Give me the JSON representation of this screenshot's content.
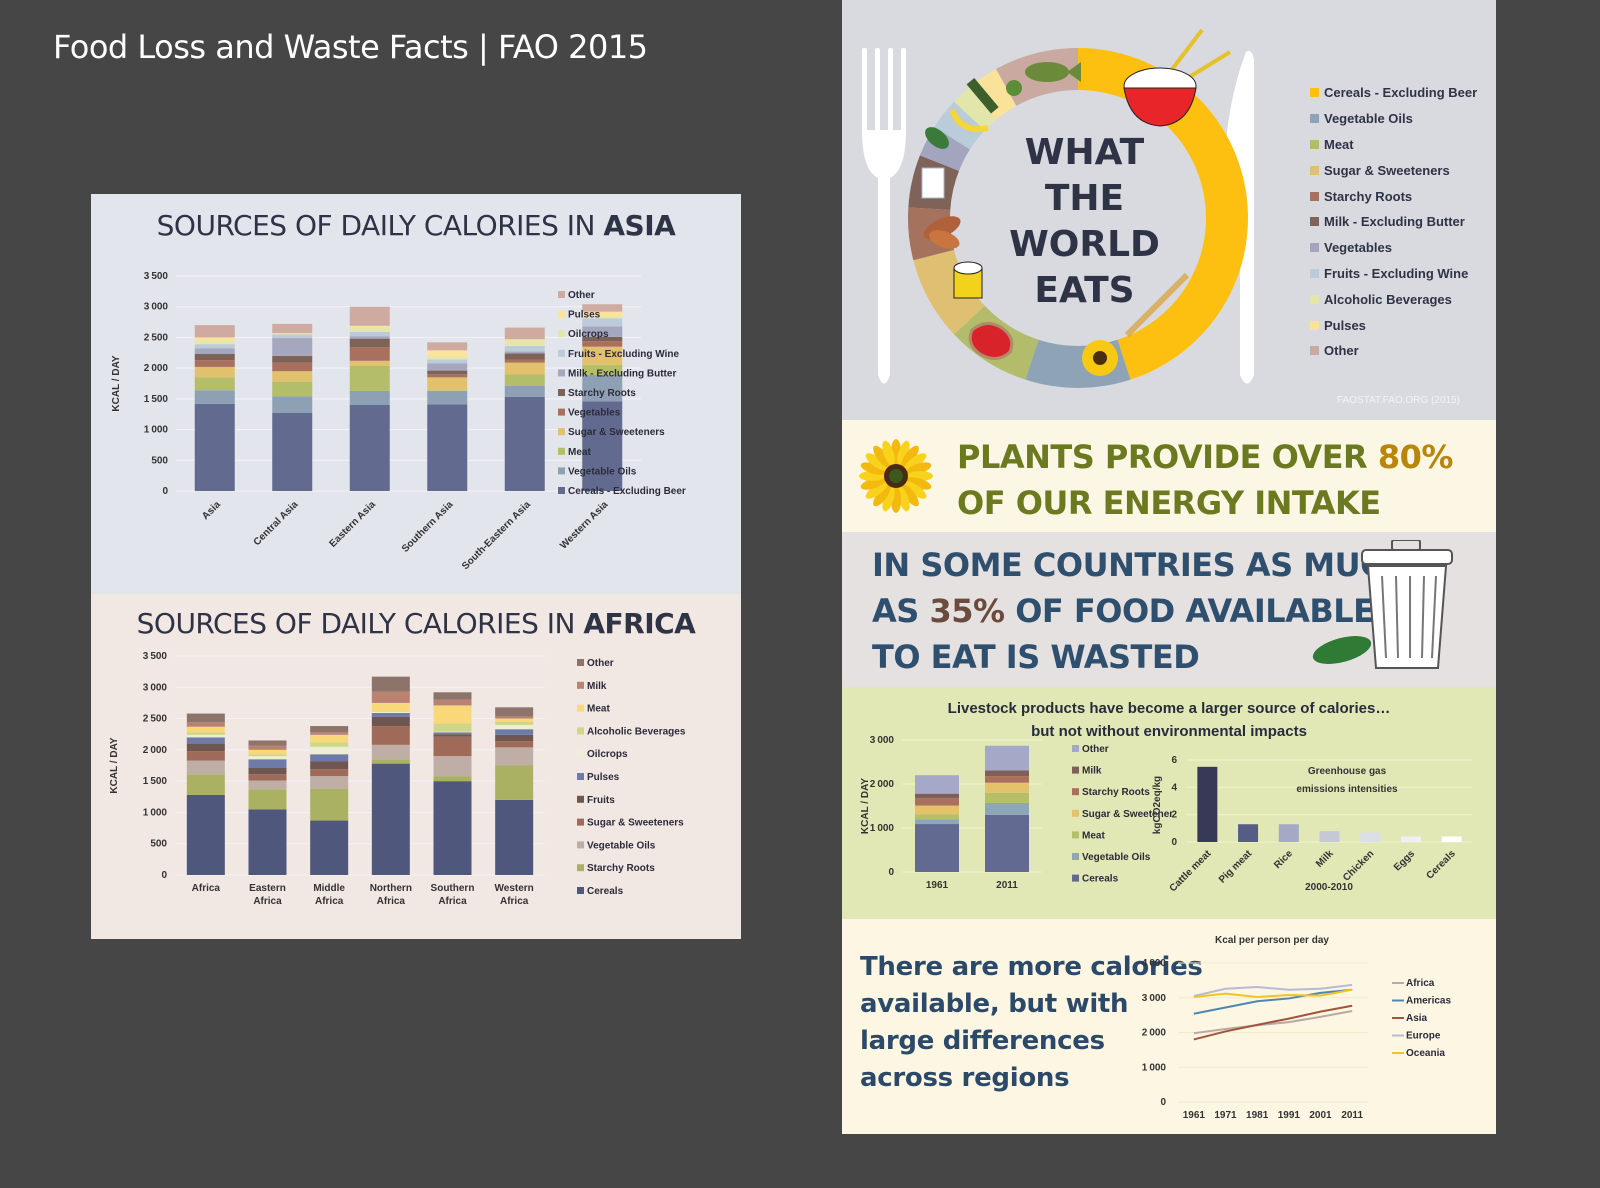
{
  "page": {
    "title": "Food Loss and Waste Facts | FAO 2015"
  },
  "asia": {
    "title_prefix": "SOURCES OF DAILY CALORIES IN ",
    "title_bold": "ASIA"
  },
  "africa": {
    "title_prefix": "SOURCES OF DAILY CALORIES IN ",
    "title_bold": "AFRICA"
  },
  "what_world_eats": {
    "title_lines": [
      "WHAT",
      "THE",
      "WORLD",
      "EATS"
    ],
    "source": "FAOSTAT.FAO.ORG (2015)",
    "legend": [
      {
        "label": "Cereals - Excluding Beer",
        "color": "#fdc010"
      },
      {
        "label": "Vegetable Oils",
        "color": "#8fa3b6"
      },
      {
        "label": "Meat",
        "color": "#b2bc6a"
      },
      {
        "label": "Sugar & Sweeteners",
        "color": "#dfc072"
      },
      {
        "label": "Starchy Roots",
        "color": "#a5725e"
      },
      {
        "label": "Milk - Excluding Butter",
        "color": "#806358"
      },
      {
        "label": "Vegetables",
        "color": "#a2a5bd"
      },
      {
        "label": "Fruits - Excluding Wine",
        "color": "#bacbd9"
      },
      {
        "label": "Alcoholic Beverages",
        "color": "#e2e6aa"
      },
      {
        "label": "Pulses",
        "color": "#fbe29a"
      },
      {
        "label": "Other",
        "color": "#c9a9a0"
      }
    ]
  },
  "plants": {
    "line1_prefix": "PLANTS PROVIDE OVER ",
    "line1_pct": "80%",
    "line2": "OF OUR ENERGY INTAKE"
  },
  "waste": {
    "line1": "IN SOME COUNTRIES AS MUCH",
    "line2_prefix": "AS ",
    "line2_pct": "35%",
    "line2_suffix": " OF FOOD AVAILABLE",
    "line3": "TO EAT IS WASTED"
  },
  "livestock": {
    "title_line1": "Livestock products have become a larger source of calories…",
    "title_line2": "but not without environmental impacts"
  },
  "calories_text": {
    "lines": [
      "There are more calories",
      "available, but with",
      "large differences",
      "across regions"
    ]
  },
  "chart_data": [
    {
      "id": "asia",
      "type": "bar",
      "stacked": true,
      "title": "SOURCES OF DAILY CALORIES IN ASIA",
      "xlabel": "",
      "ylabel": "KCAL / DAY",
      "ylim": [
        0,
        3500
      ],
      "yticks": [
        0,
        500,
        1000,
        1500,
        2000,
        2500,
        3000,
        3500
      ],
      "categories": [
        "Asia",
        "Central Asia",
        "Eastern Asia",
        "Southern Asia",
        "South-Eastern Asia",
        "Western Asia"
      ],
      "legend_position": "right",
      "series": [
        {
          "name": "Cereals - Excluding Beer",
          "color": "#636a8f",
          "values": [
            1420,
            1270,
            1400,
            1410,
            1530,
            1460
          ]
        },
        {
          "name": "Vegetable Oils",
          "color": "#8ea1b4",
          "values": [
            220,
            270,
            230,
            220,
            180,
            430
          ]
        },
        {
          "name": "Meat",
          "color": "#b4bd69",
          "values": [
            210,
            240,
            410,
            10,
            190,
            160
          ]
        },
        {
          "name": "Sugar & Sweeteners",
          "color": "#e1c16b",
          "values": [
            170,
            170,
            80,
            210,
            190,
            300
          ]
        },
        {
          "name": "Vegetables",
          "color": "#a8705d",
          "values": [
            110,
            140,
            220,
            50,
            50,
            90
          ]
        },
        {
          "name": "Starchy Roots",
          "color": "#7d6258",
          "values": [
            100,
            110,
            140,
            60,
            100,
            70
          ]
        },
        {
          "name": "Milk - Excluding Butter",
          "color": "#a5a7be",
          "values": [
            90,
            290,
            40,
            120,
            30,
            170
          ]
        },
        {
          "name": "Fruits - Excluding Wine",
          "color": "#bccbd9",
          "values": [
            70,
            60,
            70,
            60,
            90,
            130
          ]
        },
        {
          "name": "Oilcrops",
          "color": "#e3e7ab",
          "values": [
            60,
            10,
            80,
            40,
            90,
            30
          ]
        },
        {
          "name": "Pulses",
          "color": "#fbe39b",
          "values": [
            50,
            10,
            20,
            110,
            20,
            80
          ]
        },
        {
          "name": "Other",
          "color": "#cfaaa0",
          "values": [
            200,
            150,
            310,
            130,
            190,
            120
          ]
        }
      ]
    },
    {
      "id": "africa",
      "type": "bar",
      "stacked": true,
      "title": "SOURCES OF DAILY CALORIES IN AFRICA",
      "xlabel": "",
      "ylabel": "KCAL / DAY",
      "ylim": [
        0,
        3500
      ],
      "yticks": [
        0,
        500,
        1000,
        1500,
        2000,
        2500,
        3000,
        3500
      ],
      "categories": [
        "Africa",
        "Eastern Africa",
        "Middle Africa",
        "Northern Africa",
        "Southern Africa",
        "Western Africa"
      ],
      "legend_position": "right",
      "series": [
        {
          "name": "Cereals",
          "color": "#4f587c",
          "values": [
            1280,
            1050,
            870,
            1780,
            1500,
            1200
          ]
        },
        {
          "name": "Starchy Roots",
          "color": "#aab163",
          "values": [
            330,
            320,
            510,
            70,
            80,
            550
          ]
        },
        {
          "name": "Vegetable Oils",
          "color": "#bfaea6",
          "values": [
            220,
            140,
            200,
            230,
            320,
            290
          ]
        },
        {
          "name": "Sugar & Sweeteners",
          "color": "#a06a58",
          "values": [
            150,
            100,
            110,
            300,
            310,
            100
          ]
        },
        {
          "name": "Fruits",
          "color": "#6e5751",
          "values": [
            120,
            100,
            130,
            150,
            40,
            100
          ]
        },
        {
          "name": "Pulses",
          "color": "#6e7aa8",
          "values": [
            100,
            140,
            110,
            60,
            30,
            90
          ]
        },
        {
          "name": "Oilcrops",
          "color": "#eeefd2",
          "values": [
            40,
            50,
            120,
            20,
            10,
            70
          ]
        },
        {
          "name": "Alcoholic Beverages",
          "color": "#cfd787",
          "values": [
            40,
            30,
            70,
            10,
            130,
            50
          ]
        },
        {
          "name": "Meat",
          "color": "#f8d878",
          "values": [
            90,
            70,
            120,
            130,
            290,
            50
          ]
        },
        {
          "name": "Milk",
          "color": "#b98273",
          "values": [
            70,
            70,
            40,
            180,
            90,
            30
          ]
        },
        {
          "name": "Other",
          "color": "#8d746b",
          "values": [
            140,
            80,
            100,
            240,
            120,
            150
          ]
        }
      ]
    },
    {
      "id": "what_world_eats",
      "type": "pie",
      "donut": true,
      "title": "WHAT THE WORLD EATS",
      "categories": [
        "Cereals - Excluding Beer",
        "Vegetable Oils",
        "Meat",
        "Sugar & Sweeteners",
        "Starchy Roots",
        "Milk - Excluding Butter",
        "Vegetables",
        "Fruits - Excluding Wine",
        "Alcoholic Beverages",
        "Pulses",
        "Other"
      ],
      "values": [
        45,
        10,
        8,
        8,
        5,
        5,
        3,
        3,
        2,
        3,
        8
      ],
      "legend_position": "right"
    },
    {
      "id": "livestock",
      "type": "bar",
      "stacked": true,
      "title": "Livestock products have become a larger source of calories… but not without environmental impacts",
      "ylabel": "KCAL / DAY",
      "ylim": [
        0,
        3000
      ],
      "yticks": [
        0,
        1000,
        2000,
        3000
      ],
      "categories": [
        "1961",
        "2011"
      ],
      "legend_position": "right",
      "series": [
        {
          "name": "Cereals",
          "color": "#626a92",
          "values": [
            1090,
            1300
          ]
        },
        {
          "name": "Vegetable Oils",
          "color": "#8ea7b8",
          "values": [
            110,
            270
          ]
        },
        {
          "name": "Meat",
          "color": "#b4bf68",
          "values": [
            110,
            230
          ]
        },
        {
          "name": "Sugar & Sweeteners",
          "color": "#e3c26a",
          "values": [
            200,
            230
          ]
        },
        {
          "name": "Starchy Roots",
          "color": "#ab6f5d",
          "values": [
            170,
            150
          ]
        },
        {
          "name": "Milk",
          "color": "#7e5f5a",
          "values": [
            100,
            130
          ]
        },
        {
          "name": "Other",
          "color": "#a5a8c6",
          "values": [
            420,
            560
          ]
        }
      ]
    },
    {
      "id": "ghg",
      "type": "bar",
      "title": "Greenhouse gas emissions intensities",
      "xlabel": "2000-2010",
      "ylabel": "kgCO2eq/kg",
      "ylim": [
        0,
        6
      ],
      "yticks": [
        0,
        2,
        4,
        6
      ],
      "categories": [
        "Cattle meat",
        "Pig meat",
        "Rice",
        "Milk",
        "Chicken",
        "Eggs",
        "Cereals"
      ],
      "values": [
        5.5,
        1.3,
        1.3,
        0.8,
        0.7,
        0.4,
        0.4
      ],
      "colors": [
        "#363a57",
        "#555d86",
        "#a5a8c6",
        "#c6c8d7",
        "#dcdee6",
        "#eef0f6",
        "#ffffff"
      ]
    },
    {
      "id": "kcal_regions",
      "type": "line",
      "title": "Kcal per person per day",
      "ylim": [
        0,
        4000
      ],
      "yticks": [
        0,
        1000,
        2000,
        3000,
        4000
      ],
      "x": [
        "1961",
        "1971",
        "1981",
        "1991",
        "2001",
        "2011"
      ],
      "legend_position": "right",
      "series": [
        {
          "name": "Africa",
          "color": "#b9a8a3",
          "values": [
            1980,
            2100,
            2210,
            2300,
            2450,
            2620
          ]
        },
        {
          "name": "Americas",
          "color": "#4f86b0",
          "values": [
            2540,
            2720,
            2900,
            2980,
            3140,
            3230
          ]
        },
        {
          "name": "Asia",
          "color": "#a2553d",
          "values": [
            1800,
            2030,
            2220,
            2400,
            2600,
            2770
          ]
        },
        {
          "name": "Europe",
          "color": "#b7bbd6",
          "values": [
            3050,
            3260,
            3310,
            3230,
            3260,
            3370
          ]
        },
        {
          "name": "Oceania",
          "color": "#f2c325",
          "values": [
            3020,
            3120,
            3020,
            3080,
            3060,
            3230
          ]
        }
      ]
    }
  ]
}
